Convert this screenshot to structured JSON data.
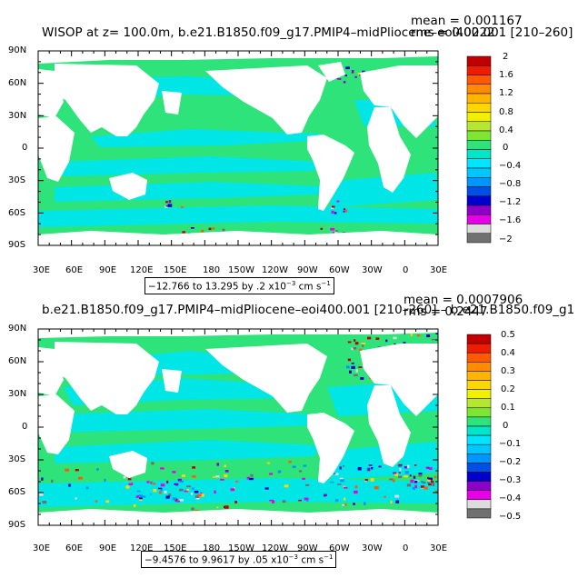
{
  "colors": {
    "land": "#ffffff",
    "ocean_main": "#2de37a",
    "ocean_shallow": "#00e6e6"
  },
  "panels": [
    {
      "title": "WISOP at z= 100.0m, b.e21.B1850.f09_g17.PMIP4–midPliocene–eoi400.001 [210–260]",
      "mean_label": "mean = 0.001167",
      "rms_label": "rms = 0.0222",
      "range_prefix": "−12.766 to 13.295 by .2 x10",
      "range_exp": "−3",
      "range_units": " cm s",
      "range_unit_exp": "−1",
      "y_ticks": [
        "90N",
        "60N",
        "30N",
        "0",
        "30S",
        "60S",
        "90S"
      ],
      "x_ticks": [
        "30E",
        "60E",
        "90E",
        "120E",
        "150E",
        "180",
        "150W",
        "120W",
        "90W",
        "60W",
        "30W",
        "0",
        "30E"
      ],
      "colorbar": {
        "labels": [
          "2",
          "1.6",
          "1.2",
          "0.8",
          "0.4",
          "0",
          "−0.4",
          "−0.8",
          "−1.2",
          "−1.6",
          "−2"
        ],
        "colors": [
          "#c00000",
          "#ee1c00",
          "#ff5a00",
          "#ff8c00",
          "#ffb400",
          "#ffd700",
          "#f0f000",
          "#b4e632",
          "#7ee632",
          "#2de37a",
          "#00e6c8",
          "#00e6ff",
          "#00c8ff",
          "#0096ff",
          "#0050e6",
          "#0000cc",
          "#8c00c8",
          "#e600e6",
          "#dcdcdc",
          "#707070"
        ]
      }
    },
    {
      "title": "b.e21.B1850.f09_g17.PMIP4–midPliocene–eoi400.001 [210–260] – b.e21.B1850.f09_g1",
      "mean_label": "mean = 0.0007906",
      "rms_label": "rms = 0.2447",
      "range_prefix": "−9.4576 to 9.9617 by .05 x10",
      "range_exp": "−3",
      "range_units": " cm s",
      "range_unit_exp": "−1",
      "y_ticks": [
        "90N",
        "60N",
        "30N",
        "0",
        "30S",
        "60S",
        "90S"
      ],
      "x_ticks": [
        "30E",
        "60E",
        "90E",
        "120E",
        "150E",
        "180",
        "150W",
        "120W",
        "90W",
        "60W",
        "30W",
        "0",
        "30E"
      ],
      "colorbar": {
        "labels": [
          "0.5",
          "0.4",
          "0.3",
          "0.2",
          "0.1",
          "0",
          "−0.1",
          "−0.2",
          "−0.3",
          "−0.4",
          "−0.5"
        ],
        "colors": [
          "#c00000",
          "#ee1c00",
          "#ff5a00",
          "#ff8c00",
          "#ffb400",
          "#ffd700",
          "#f0f000",
          "#b4e632",
          "#7ee632",
          "#2de37a",
          "#00e6c8",
          "#00e6ff",
          "#00c8ff",
          "#0096ff",
          "#0050e6",
          "#0000cc",
          "#8c00c8",
          "#e600e6",
          "#dcdcdc",
          "#707070"
        ]
      }
    }
  ]
}
